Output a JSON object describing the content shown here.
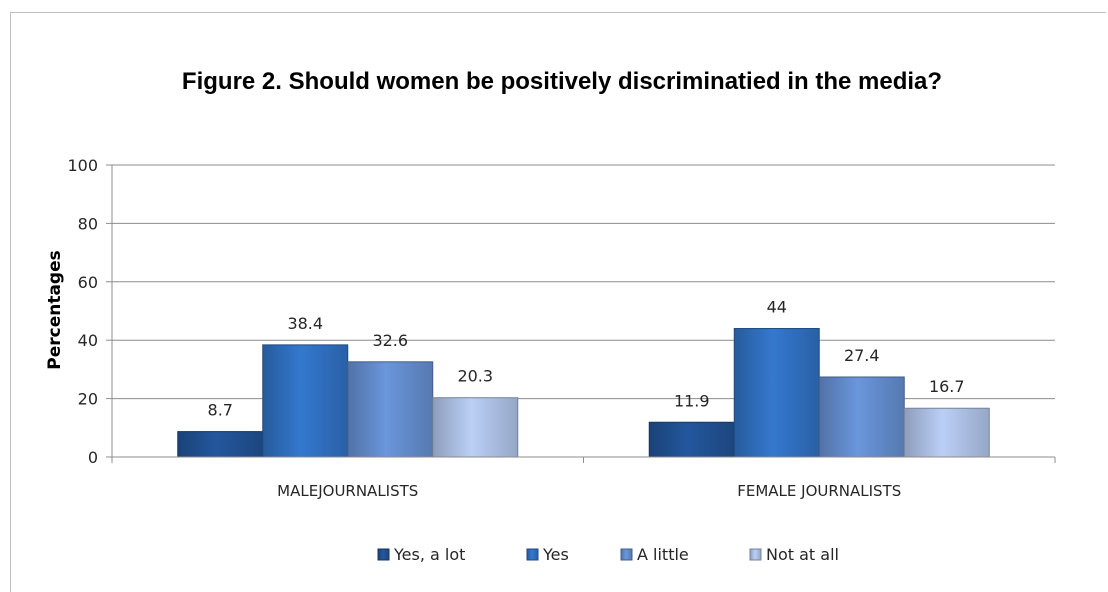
{
  "chart_data": {
    "type": "bar",
    "title": "Figure 2. Should  women be positively discriminatied in the media?",
    "xlabel": "",
    "ylabel": "Percentages",
    "ylim": [
      0,
      100
    ],
    "yticks": [
      "0",
      "20",
      "40",
      "60",
      "80",
      "100"
    ],
    "categories": [
      "MALEJOURNALISTS",
      "FEMALE JOURNALISTS"
    ],
    "series": [
      {
        "name": "Yes, a lot",
        "values": [
          8.7,
          11.9
        ],
        "labels": [
          "8.7",
          "11.9"
        ],
        "color": "#1f4e8c"
      },
      {
        "name": "Yes",
        "values": [
          38.4,
          44
        ],
        "labels": [
          "38.4",
          "44"
        ],
        "color": "#2e6bb8"
      },
      {
        "name": "A little",
        "values": [
          32.6,
          27.4
        ],
        "labels": [
          "32.6",
          "27.4"
        ],
        "color": "#5f86c4"
      },
      {
        "name": "Not at all",
        "values": [
          20.3,
          16.7
        ],
        "labels": [
          "20.3",
          "16.7"
        ],
        "color": "#a7b9dc"
      }
    ],
    "grid": true,
    "legend_position": "bottom"
  }
}
